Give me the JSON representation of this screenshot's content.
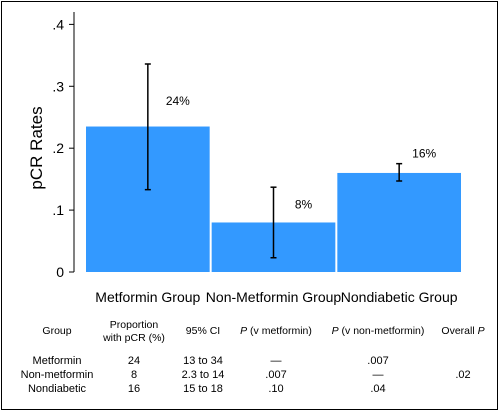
{
  "chart_data": {
    "type": "bar",
    "ylabel": "pCR Rates",
    "xlabel": "",
    "ylim": [
      0,
      0.42
    ],
    "yticks": [
      0,
      0.1,
      0.2,
      0.3,
      0.4
    ],
    "ytick_labels": [
      "0",
      ".1",
      ".2",
      ".3",
      ".4"
    ],
    "categories": [
      "Metformin Group",
      "Non-Metformin Group",
      "Nondiabetic Group"
    ],
    "values": [
      0.235,
      0.08,
      0.16
    ],
    "error_low": [
      0.133,
      0.023,
      0.147
    ],
    "error_high": [
      0.336,
      0.137,
      0.175
    ],
    "data_labels": [
      "24%",
      "8%",
      "16%"
    ],
    "bar_color": "#3399ff"
  },
  "table": {
    "headers": {
      "group": "Group",
      "proportion_line1": "Proportion",
      "proportion_line2": "with pCR (%)",
      "ci": "95% CI",
      "p_metformin_prefix": "P",
      "p_metformin_suffix": "(v metformin)",
      "p_nonmetformin_prefix": "P",
      "p_nonmetformin_suffix": "(v non-metformin)",
      "overall_prefix": "Overall",
      "overall_suffix": "P"
    },
    "rows": [
      {
        "group": "Metformin",
        "proportion": "24",
        "ci": "13 to 34",
        "p_metformin": "—",
        "p_nonmetformin": ".007",
        "overall": ""
      },
      {
        "group": "Non-metformin",
        "proportion": "8",
        "ci": "2.3 to 14",
        "p_metformin": ".007",
        "p_nonmetformin": "—",
        "overall": ".02"
      },
      {
        "group": "Nondiabetic",
        "proportion": "16",
        "ci": "15 to 18",
        "p_metformin": ".10",
        "p_nonmetformin": ".04",
        "overall": ""
      }
    ]
  }
}
